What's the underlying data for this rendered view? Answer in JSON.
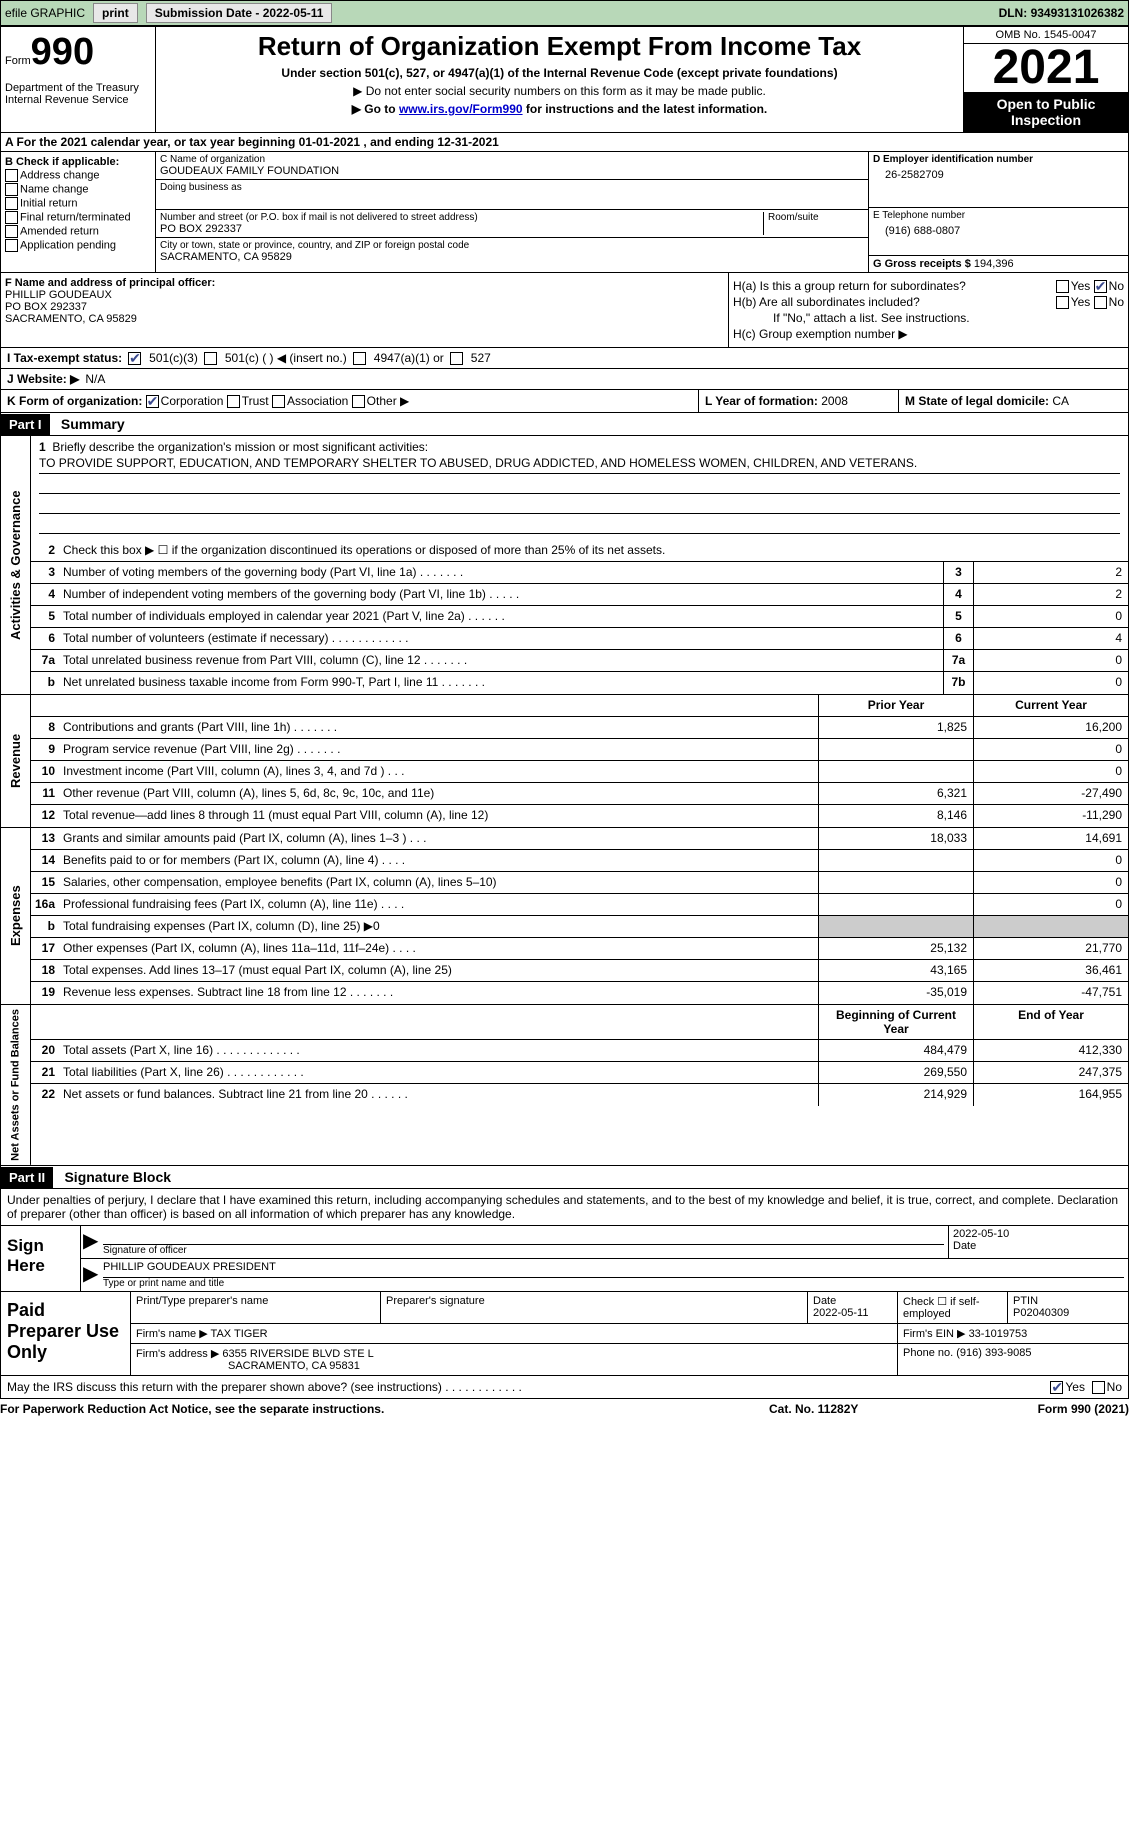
{
  "topbar": {
    "efile": "efile GRAPHIC",
    "print": "print",
    "submission_label": "Submission Date - ",
    "submission_date": "2022-05-11",
    "dln_label": "DLN: ",
    "dln": "93493131026382"
  },
  "header": {
    "form_word": "Form",
    "form_num": "990",
    "dept": "Department of the Treasury\nInternal Revenue Service",
    "title": "Return of Organization Exempt From Income Tax",
    "subtitle": "Under section 501(c), 527, or 4947(a)(1) of the Internal Revenue Code (except private foundations)",
    "note1": "▶ Do not enter social security numbers on this form as it may be made public.",
    "note2_pre": "▶ Go to ",
    "note2_link": "www.irs.gov/Form990",
    "note2_post": " for instructions and the latest information.",
    "omb": "OMB No. 1545-0047",
    "year": "2021",
    "inspect": "Open to Public Inspection"
  },
  "row_a": {
    "text_pre": "A For the 2021 calendar year, or tax year beginning ",
    "begin": "01-01-2021",
    "mid": " , and ending ",
    "end": "12-31-2021"
  },
  "col_b": {
    "label": "B Check if applicable:",
    "items": [
      "Address change",
      "Name change",
      "Initial return",
      "Final return/terminated",
      "Amended return",
      "Application pending"
    ]
  },
  "col_c": {
    "name_lbl": "C Name of organization",
    "name": "GOUDEAUX FAMILY FOUNDATION",
    "dba_lbl": "Doing business as",
    "dba": "",
    "street_lbl": "Number and street (or P.O. box if mail is not delivered to street address)",
    "street": "PO BOX 292337",
    "room_lbl": "Room/suite",
    "room": "",
    "city_lbl": "City or town, state or province, country, and ZIP or foreign postal code",
    "city": "SACRAMENTO, CA  95829"
  },
  "col_d": {
    "ein_lbl": "D Employer identification number",
    "ein": "26-2582709",
    "phone_lbl": "E Telephone number",
    "phone": "(916) 688-0807",
    "gross_lbl": "G Gross receipts $ ",
    "gross": "194,396"
  },
  "col_f": {
    "lbl": "F Name and address of principal officer:",
    "name": "PHILLIP GOUDEAUX",
    "street": "PO BOX 292337",
    "city": "SACRAMENTO, CA  95829"
  },
  "col_h": {
    "ha": "H(a)  Is this a group return for subordinates?",
    "hb": "H(b)  Are all subordinates included?",
    "hb_note": "If \"No,\" attach a list. See instructions.",
    "hc": "H(c)  Group exemption number ▶",
    "yes": "Yes",
    "no": "No"
  },
  "row_i": {
    "lbl": "I  Tax-exempt status:",
    "o1": "501(c)(3)",
    "o2": "501(c) (  ) ◀ (insert no.)",
    "o3": "4947(a)(1) or",
    "o4": "527"
  },
  "row_j": {
    "lbl": "J  Website: ▶",
    "val": "N/A"
  },
  "row_k": {
    "lbl": "K Form of organization:",
    "o1": "Corporation",
    "o2": "Trust",
    "o3": "Association",
    "o4": "Other ▶",
    "l_lbl": "L Year of formation: ",
    "l_val": "2008",
    "m_lbl": "M State of legal domicile: ",
    "m_val": "CA"
  },
  "part1": {
    "hdr": "Part I",
    "title": "Summary",
    "vtab_ag": "Activities & Governance",
    "vtab_rev": "Revenue",
    "vtab_exp": "Expenses",
    "vtab_net": "Net Assets or Fund Balances",
    "line1_lbl": "Briefly describe the organization's mission or most significant activities:",
    "line1_val": "TO PROVIDE SUPPORT, EDUCATION, AND TEMPORARY SHELTER TO ABUSED, DRUG ADDICTED, AND HOMELESS WOMEN, CHILDREN, AND VETERANS.",
    "line2": "Check this box ▶ ☐ if the organization discontinued its operations or disposed of more than 25% of its net assets.",
    "prior_hdr": "Prior Year",
    "current_hdr": "Current Year",
    "begin_hdr": "Beginning of Current Year",
    "end_hdr": "End of Year",
    "lines_ag": [
      {
        "n": "3",
        "d": "Number of voting members of the governing body (Part VI, line 1a)  .   .   .   .   .   .   .",
        "box": "3",
        "v": "2"
      },
      {
        "n": "4",
        "d": "Number of independent voting members of the governing body (Part VI, line 1b)  .   .   .   .   .",
        "box": "4",
        "v": "2"
      },
      {
        "n": "5",
        "d": "Total number of individuals employed in calendar year 2021 (Part V, line 2a)  .   .   .   .   .   .",
        "box": "5",
        "v": "0"
      },
      {
        "n": "6",
        "d": "Total number of volunteers (estimate if necessary)   .   .   .   .   .   .   .   .   .   .   .   .",
        "box": "6",
        "v": "4"
      },
      {
        "n": "7a",
        "d": "Total unrelated business revenue from Part VIII, column (C), line 12   .   .   .   .   .   .   .",
        "box": "7a",
        "v": "0"
      },
      {
        "n": "b",
        "d": "Net unrelated business taxable income from Form 990-T, Part I, line 11  .   .   .   .   .   .   .",
        "box": "7b",
        "v": "0"
      }
    ],
    "lines_rev": [
      {
        "n": "8",
        "d": "Contributions and grants (Part VIII, line 1h)   .   .   .   .   .   .   .",
        "p": "1,825",
        "c": "16,200"
      },
      {
        "n": "9",
        "d": "Program service revenue (Part VIII, line 2g)   .   .   .   .   .   .   .",
        "p": "",
        "c": "0"
      },
      {
        "n": "10",
        "d": "Investment income (Part VIII, column (A), lines 3, 4, and 7d )   .   .   .",
        "p": "",
        "c": "0"
      },
      {
        "n": "11",
        "d": "Other revenue (Part VIII, column (A), lines 5, 6d, 8c, 9c, 10c, and 11e)",
        "p": "6,321",
        "c": "-27,490"
      },
      {
        "n": "12",
        "d": "Total revenue—add lines 8 through 11 (must equal Part VIII, column (A), line 12)",
        "p": "8,146",
        "c": "-11,290"
      }
    ],
    "lines_exp": [
      {
        "n": "13",
        "d": "Grants and similar amounts paid (Part IX, column (A), lines 1–3 )   .   .   .",
        "p": "18,033",
        "c": "14,691"
      },
      {
        "n": "14",
        "d": "Benefits paid to or for members (Part IX, column (A), line 4)   .   .   .   .",
        "p": "",
        "c": "0"
      },
      {
        "n": "15",
        "d": "Salaries, other compensation, employee benefits (Part IX, column (A), lines 5–10)",
        "p": "",
        "c": "0"
      },
      {
        "n": "16a",
        "d": "Professional fundraising fees (Part IX, column (A), line 11e)   .   .   .   .",
        "p": "",
        "c": "0"
      },
      {
        "n": "b",
        "d": "Total fundraising expenses (Part IX, column (D), line 25) ▶0",
        "p": "grey",
        "c": "grey"
      },
      {
        "n": "17",
        "d": "Other expenses (Part IX, column (A), lines 11a–11d, 11f–24e)   .   .   .   .",
        "p": "25,132",
        "c": "21,770"
      },
      {
        "n": "18",
        "d": "Total expenses. Add lines 13–17 (must equal Part IX, column (A), line 25)",
        "p": "43,165",
        "c": "36,461"
      },
      {
        "n": "19",
        "d": "Revenue less expenses. Subtract line 18 from line 12  .   .   .   .   .   .   .",
        "p": "-35,019",
        "c": "-47,751"
      }
    ],
    "lines_net": [
      {
        "n": "20",
        "d": "Total assets (Part X, line 16)  .   .   .   .   .   .   .   .   .   .   .   .   .",
        "p": "484,479",
        "c": "412,330"
      },
      {
        "n": "21",
        "d": "Total liabilities (Part X, line 26)  .   .   .   .   .   .   .   .   .   .   .   .",
        "p": "269,550",
        "c": "247,375"
      },
      {
        "n": "22",
        "d": "Net assets or fund balances. Subtract line 21 from line 20  .   .   .   .   .   .",
        "p": "214,929",
        "c": "164,955"
      }
    ]
  },
  "part2": {
    "hdr": "Part II",
    "title": "Signature Block",
    "intro": "Under penalties of perjury, I declare that I have examined this return, including accompanying schedules and statements, and to the best of my knowledge and belief, it is true, correct, and complete. Declaration of preparer (other than officer) is based on all information of which preparer has any knowledge.",
    "sign_here": "Sign Here",
    "sig_officer_lbl": "Signature of officer",
    "sig_date": "2022-05-10",
    "date_lbl": "Date",
    "officer_name": "PHILLIP GOUDEAUX PRESIDENT",
    "name_title_lbl": "Type or print name and title",
    "paid_prep": "Paid Preparer Use Only",
    "prep_name_lbl": "Print/Type preparer's name",
    "prep_sig_lbl": "Preparer's signature",
    "prep_date_lbl": "Date",
    "prep_date": "2022-05-11",
    "check_if_lbl": "Check ☐ if self-employed",
    "ptin_lbl": "PTIN",
    "ptin": "P02040309",
    "firm_name_lbl": "Firm's name    ▶ ",
    "firm_name": "TAX TIGER",
    "firm_ein_lbl": "Firm's EIN ▶ ",
    "firm_ein": "33-1019753",
    "firm_addr_lbl": "Firm's address ▶ ",
    "firm_addr1": "6355 RIVERSIDE BLVD STE L",
    "firm_addr2": "SACRAMENTO, CA  95831",
    "firm_phone_lbl": "Phone no. ",
    "firm_phone": "(916) 393-9085",
    "discuss": "May the IRS discuss this return with the preparer shown above? (see instructions)   .   .   .   .   .   .   .   .   .   .   .   ."
  },
  "footer": {
    "pra": "For Paperwork Reduction Act Notice, see the separate instructions.",
    "cat": "Cat. No. 11282Y",
    "form": "Form 990 (2021)"
  }
}
